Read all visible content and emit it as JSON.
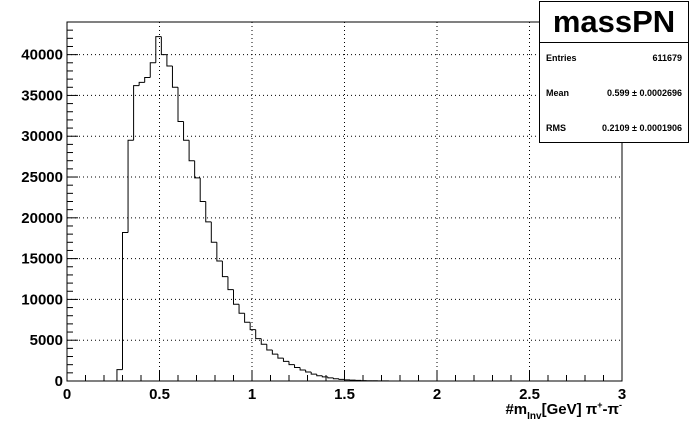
{
  "chart_data": {
    "type": "histogram",
    "title": "massPN",
    "xlabel_main": "#m",
    "xlabel_sub": "Inv",
    "xlabel_rest": "[GeV] π",
    "xlabel_sup1": "+",
    "xlabel_dash": "-π",
    "xlabel_sup2": "-",
    "ylabel": "",
    "xlim": [
      0,
      3
    ],
    "ylim": [
      0,
      44000
    ],
    "x_ticks": [
      0,
      0.5,
      1,
      1.5,
      2,
      2.5,
      3
    ],
    "x_tick_labels": [
      "0",
      "0.5",
      "1",
      "1.5",
      "2",
      "2.5",
      "3"
    ],
    "y_ticks": [
      0,
      5000,
      10000,
      15000,
      20000,
      25000,
      30000,
      35000,
      40000
    ],
    "y_tick_labels": [
      "0",
      "5000",
      "10000",
      "15000",
      "20000",
      "25000",
      "30000",
      "35000",
      "40000"
    ],
    "grid": true,
    "bin_width": 0.03,
    "bins_start": 0.27,
    "values": [
      1400,
      18200,
      29500,
      36200,
      36600,
      37200,
      39000,
      42200,
      40000,
      38600,
      36000,
      31800,
      29500,
      27000,
      24900,
      22000,
      19500,
      17000,
      14700,
      12800,
      11200,
      9400,
      8300,
      7200,
      6300,
      5200,
      4500,
      3800,
      3300,
      2800,
      2400,
      2000,
      1650,
      1350,
      1100,
      850,
      650,
      500,
      380,
      280,
      200,
      140,
      100,
      70,
      50,
      35,
      25,
      15,
      10
    ]
  },
  "stats": {
    "title": "massPN",
    "rows": [
      {
        "key": "Entries",
        "value": "611679"
      },
      {
        "key": "Mean",
        "value": "0.599 ± 0.0002696"
      },
      {
        "key": "RMS",
        "value": "0.2109 ± 0.0001906"
      }
    ]
  }
}
